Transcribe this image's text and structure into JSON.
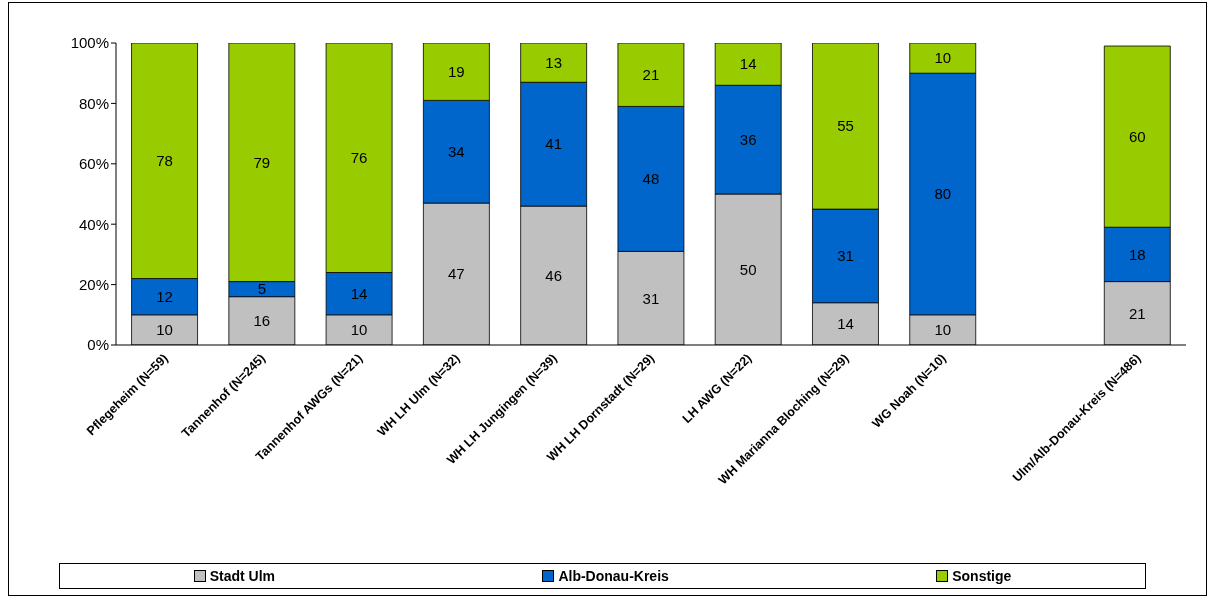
{
  "chart_data": {
    "type": "bar",
    "stacked": true,
    "categories": [
      "Pflegeheim (N=59)",
      "Tannenhof (N=245)",
      "Tannenhof AWGs (N=21)",
      "WH LH Ulm (N=32)",
      "WH LH Jungingen (N=39)",
      "WH LH Dornstadt (N=29)",
      "LH AWG (N=22)",
      "WH Marianna Bloching (N=29)",
      "WG Noah (N=10)",
      null,
      "Ulm/Alb-Donau-Kreis (N=486)"
    ],
    "series": [
      {
        "name": "Stadt Ulm",
        "color": "#c0c0c0",
        "values": [
          10,
          16,
          10,
          47,
          46,
          31,
          50,
          14,
          10,
          null,
          21
        ]
      },
      {
        "name": "Alb-Donau-Kreis",
        "color": "#0066cc",
        "values": [
          12,
          5,
          14,
          34,
          41,
          48,
          36,
          31,
          80,
          null,
          18
        ]
      },
      {
        "name": "Sonstige",
        "color": "#99cc00",
        "values": [
          78,
          79,
          76,
          19,
          13,
          21,
          14,
          55,
          10,
          null,
          60
        ]
      }
    ],
    "ylim": [
      0,
      100
    ],
    "yticks": [
      {
        "value": 0,
        "label": "0%"
      },
      {
        "value": 20,
        "label": "20%"
      },
      {
        "value": 40,
        "label": "40%"
      },
      {
        "value": 60,
        "label": "60%"
      },
      {
        "value": 80,
        "label": "80%"
      },
      {
        "value": 100,
        "label": "100%"
      }
    ],
    "data_labels": true,
    "grid": false,
    "legend": "bottom"
  }
}
